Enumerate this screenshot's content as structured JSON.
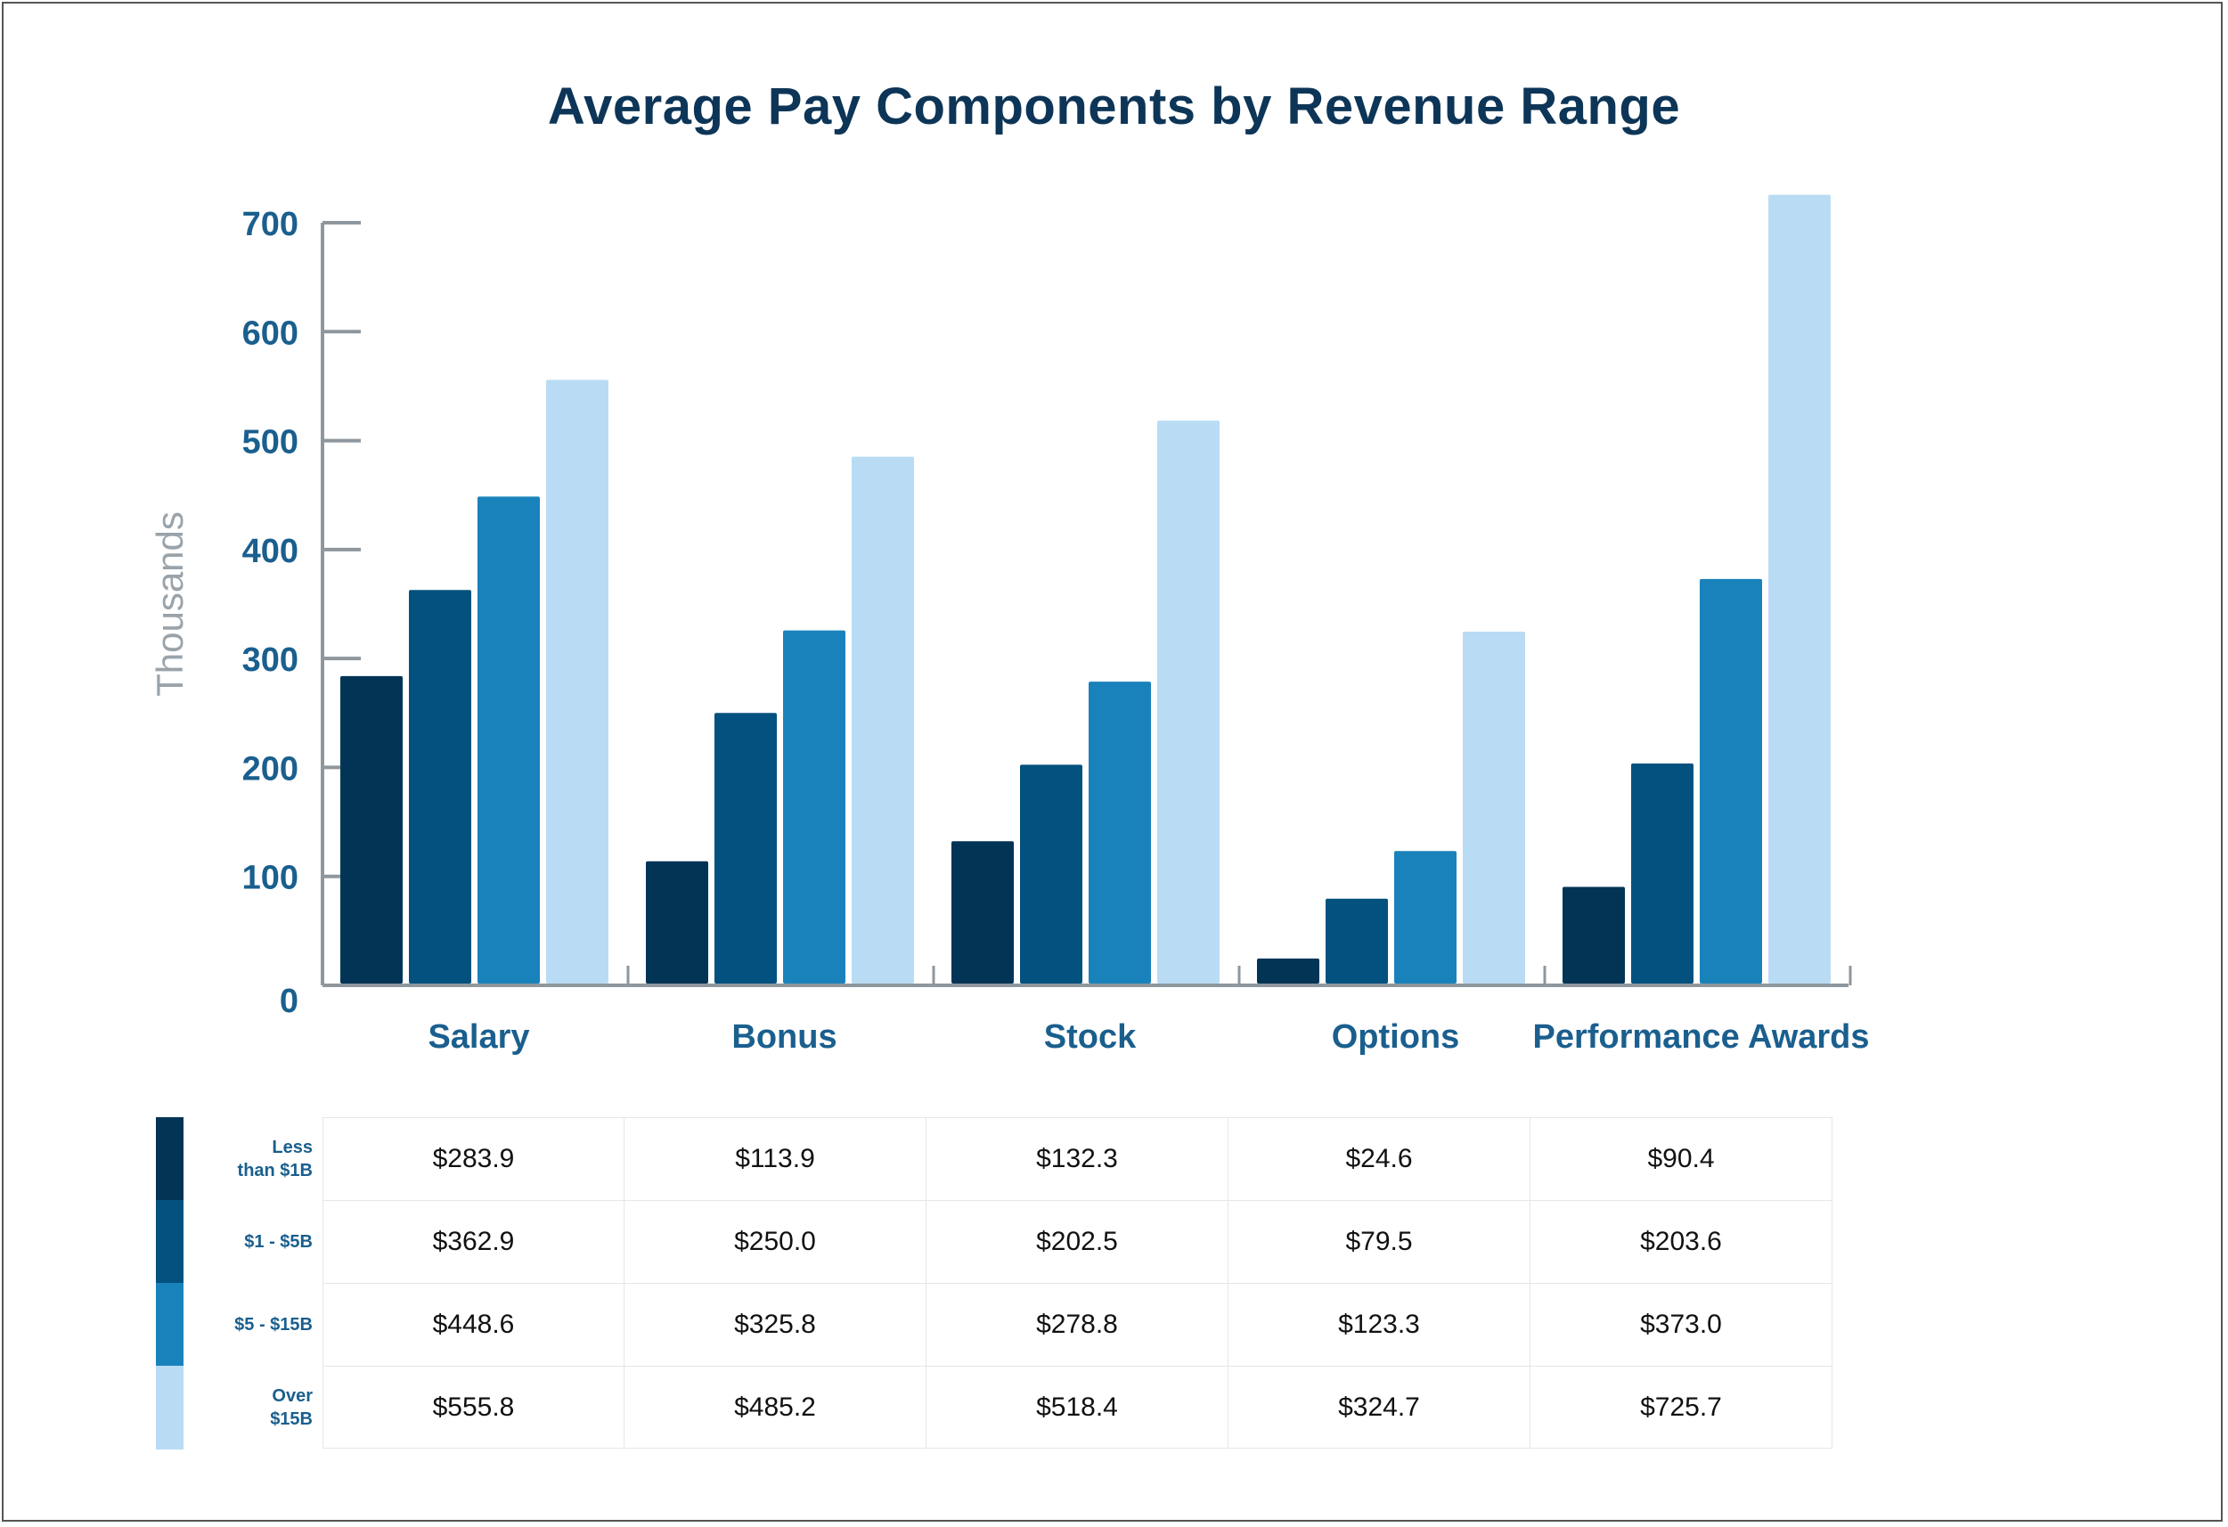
{
  "chart_data": {
    "type": "bar",
    "title": "Average Pay Components by Revenue Range",
    "ylabel": "Thousands",
    "xlabel": "",
    "ylim": [
      0,
      700
    ],
    "yticks": [
      0,
      100,
      200,
      300,
      400,
      500,
      600,
      700
    ],
    "categories": [
      "Salary",
      "Bonus",
      "Stock",
      "Options",
      "Performance Awards"
    ],
    "series": [
      {
        "name": "Less\nthan $1B",
        "color": "#023455",
        "values": [
          283.9,
          113.9,
          132.3,
          24.6,
          90.4
        ],
        "labels": [
          "$283.9",
          "$113.9",
          "$132.3",
          "$24.6",
          "$90.4"
        ]
      },
      {
        "name": "$1 - $5B",
        "color": "#03517f",
        "values": [
          362.9,
          250.0,
          202.5,
          79.5,
          203.6
        ],
        "labels": [
          "$362.9",
          "$250.0",
          "$202.5",
          "$79.5",
          "$203.6"
        ]
      },
      {
        "name": "$5 - $15B",
        "color": "#1a82bb",
        "values": [
          448.6,
          325.8,
          278.8,
          123.3,
          373.0
        ],
        "labels": [
          "$448.6",
          "$325.8",
          "$278.8",
          "$123.3",
          "$373.0"
        ]
      },
      {
        "name": "Over\n$15B",
        "color": "#b9dcf4",
        "values": [
          555.8,
          485.2,
          518.4,
          324.7,
          725.7
        ],
        "labels": [
          "$555.8",
          "$485.2",
          "$518.4",
          "$324.7",
          "$725.7"
        ]
      }
    ],
    "grid": false,
    "legend": "bottom-table"
  }
}
